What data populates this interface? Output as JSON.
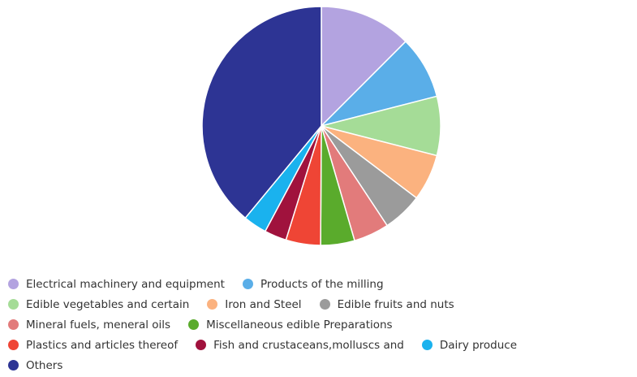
{
  "chart_data": {
    "type": "pie",
    "title": "",
    "start_angle_deg": 0,
    "direction": "clockwise",
    "slices": [
      {
        "label": "Electrical machinery and equipment",
        "value": 12.5,
        "color": "#b3a3e0"
      },
      {
        "label": "Products of the milling",
        "value": 8.5,
        "color": "#5aaee8"
      },
      {
        "label": "Edible vegetables and certain",
        "value": 8.0,
        "color": "#a5dc97"
      },
      {
        "label": "Iron and Steel",
        "value": 6.3,
        "color": "#fbb27f"
      },
      {
        "label": "Edible fruits and nuts",
        "value": 5.4,
        "color": "#9b9b9b"
      },
      {
        "label": "Mineral fuels, meneral oils",
        "value": 4.8,
        "color": "#e27b7b"
      },
      {
        "label": "Miscellaneous edible Preparations",
        "value": 4.6,
        "color": "#5aab2c"
      },
      {
        "label": "Plastics and articles thereof",
        "value": 4.7,
        "color": "#ef4535"
      },
      {
        "label": "Fish and crustaceans,molluscs and",
        "value": 3.0,
        "color": "#a0123d"
      },
      {
        "label": "Dairy produce",
        "value": 3.2,
        "color": "#1ab2ee"
      },
      {
        "label": "Others",
        "value": 39.0,
        "color": "#2d3494"
      }
    ],
    "legend": {
      "placement": "bottom",
      "rows": [
        [
          0,
          1
        ],
        [
          2,
          3,
          4
        ],
        [
          5,
          6
        ],
        [
          7,
          8,
          9
        ],
        [
          10
        ]
      ]
    }
  }
}
